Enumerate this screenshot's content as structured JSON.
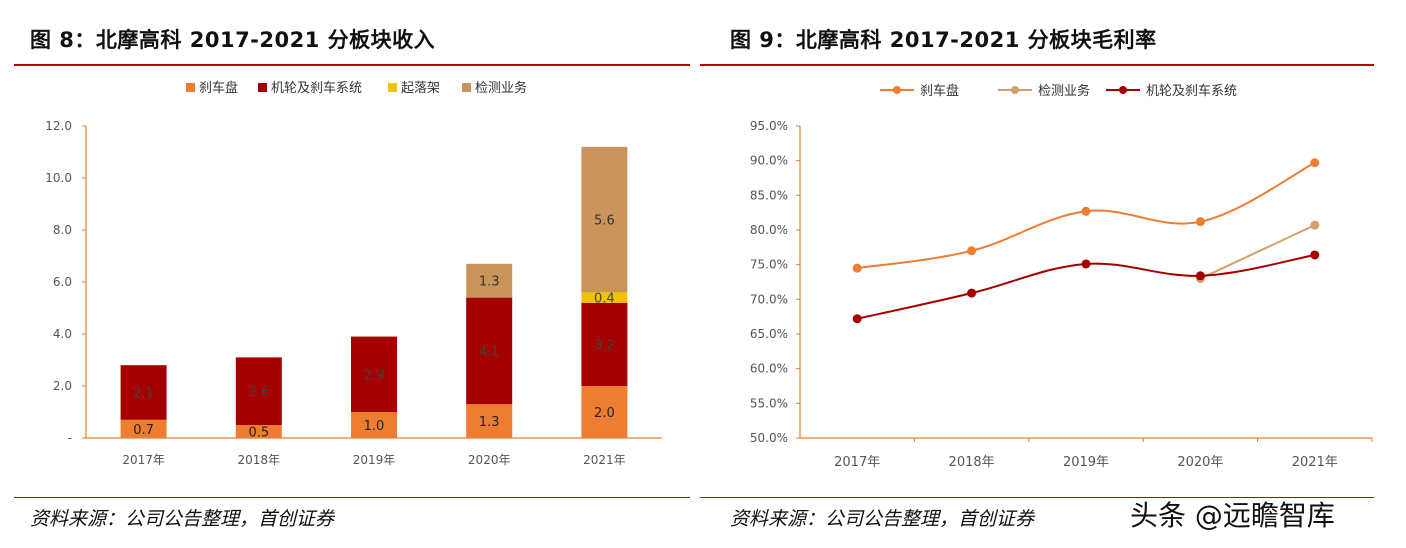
{
  "left": {
    "title": "图 8：北摩高科 2017-2021 分板块收入",
    "source": "资料来源：公司公告整理，首创证券"
  },
  "right": {
    "title": "图 9：北摩高科 2017-2021 分板块毛利率",
    "source": "资料来源：公司公告整理，首创证券"
  },
  "watermark": "头条 @远瞻智库",
  "chart_data": [
    {
      "type": "bar",
      "stacked": true,
      "title": "",
      "categories": [
        "2017年",
        "2018年",
        "2019年",
        "2020年",
        "2021年"
      ],
      "series": [
        {
          "name": "刹车盘",
          "color": "#ed7d31",
          "values": [
            0.7,
            0.5,
            1.0,
            1.3,
            2.0
          ],
          "labels": [
            "0.7",
            "0.5",
            "1.0",
            "1.3",
            "2.0"
          ],
          "label_color": "#222222"
        },
        {
          "name": "机轮及刹车系统",
          "color": "#a50000",
          "values": [
            2.1,
            2.6,
            2.9,
            4.1,
            3.2
          ],
          "labels": [
            "2.1",
            "2.6",
            "2.9",
            "4.1",
            "3.2"
          ],
          "label_color": "#444444"
        },
        {
          "name": "起落架",
          "color": "#f2c200",
          "values": [
            0,
            0,
            0,
            0,
            0.4
          ],
          "labels": [
            "",
            "",
            "",
            "",
            "0.4"
          ],
          "label_color": "#444444"
        },
        {
          "name": "检测业务",
          "color": "#c9955a",
          "values": [
            0,
            0,
            0,
            1.3,
            5.6
          ],
          "labels": [
            "",
            "",
            "",
            "1.3",
            "5.6"
          ],
          "label_color": "#333333"
        }
      ],
      "ylim": [
        0,
        12
      ],
      "yticks": [
        0,
        2,
        4,
        6,
        8,
        10,
        12
      ],
      "ytick_labels": [
        "-",
        "2.0",
        "4.0",
        "6.0",
        "8.0",
        "10.0",
        "12.0"
      ],
      "legend": "top",
      "grid": false
    },
    {
      "type": "line",
      "smooth": true,
      "title": "",
      "categories": [
        "2017年",
        "2018年",
        "2019年",
        "2020年",
        "2021年"
      ],
      "series": [
        {
          "name": "刹车盘",
          "color": "#ed7d31",
          "values": [
            74.5,
            77.0,
            82.7,
            81.2,
            89.7
          ]
        },
        {
          "name": "检测业务",
          "color": "#d4a06a",
          "values": [
            null,
            null,
            null,
            73.0,
            80.7
          ]
        },
        {
          "name": "机轮及刹车系统",
          "color": "#a50000",
          "values": [
            67.2,
            70.9,
            75.1,
            73.4,
            76.4
          ]
        }
      ],
      "ylim": [
        50,
        95
      ],
      "yticks": [
        50,
        55,
        60,
        65,
        70,
        75,
        80,
        85,
        90,
        95
      ],
      "ytick_labels": [
        "50.0%",
        "55.0%",
        "60.0%",
        "65.0%",
        "70.0%",
        "75.0%",
        "80.0%",
        "85.0%",
        "90.0%",
        "95.0%"
      ],
      "legend": "top",
      "grid": false
    }
  ]
}
